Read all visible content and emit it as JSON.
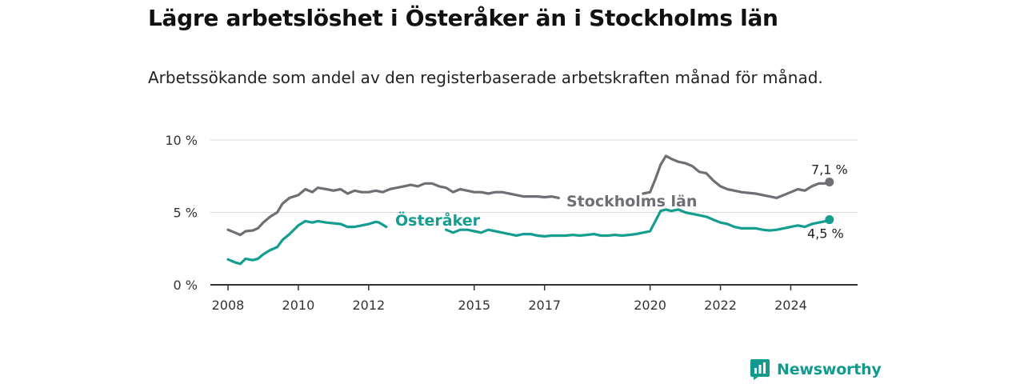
{
  "header": {
    "title": "Lägre arbetslöshet i Österåker än i Stockholms län",
    "subtitle": "Arbetssökande som andel av den registerbaserade arbetskraften månad för månad."
  },
  "brand": {
    "name": "Newsworthy",
    "icon": "bar-chart-speech-bubble-icon"
  },
  "colors": {
    "stockholm": "#6f6e74",
    "osteraker": "#159d8f",
    "grid": "#d9d9d9",
    "axis": "#333333"
  },
  "chart_data": {
    "type": "line",
    "title": "Lägre arbetslöshet i Österåker än i Stockholms län",
    "xlabel": "",
    "ylabel": "",
    "xlim": [
      2007.5,
      2025.9
    ],
    "ylim": [
      0,
      10
    ],
    "y_ticks": [
      0,
      5,
      10
    ],
    "y_tick_labels": [
      "0 %",
      "5 %",
      "10 %"
    ],
    "x_ticks": [
      2008,
      2010,
      2012,
      2015,
      2017,
      2020,
      2022,
      2024
    ],
    "x_tick_labels": [
      "2008",
      "2010",
      "2012",
      "2015",
      "2017",
      "2020",
      "2022",
      "2024"
    ],
    "grid": true,
    "series": [
      {
        "name": "Stockholms län",
        "end_label": "7,1 %",
        "points": [
          [
            2008.0,
            3.8
          ],
          [
            2008.2,
            3.6
          ],
          [
            2008.35,
            3.45
          ],
          [
            2008.5,
            3.7
          ],
          [
            2008.7,
            3.75
          ],
          [
            2008.85,
            3.9
          ],
          [
            2009.0,
            4.3
          ],
          [
            2009.2,
            4.7
          ],
          [
            2009.4,
            5.0
          ],
          [
            2009.55,
            5.6
          ],
          [
            2009.75,
            6.0
          ],
          [
            2010.0,
            6.2
          ],
          [
            2010.2,
            6.6
          ],
          [
            2010.4,
            6.4
          ],
          [
            2010.55,
            6.7
          ],
          [
            2010.8,
            6.6
          ],
          [
            2011.0,
            6.5
          ],
          [
            2011.2,
            6.6
          ],
          [
            2011.4,
            6.3
          ],
          [
            2011.6,
            6.5
          ],
          [
            2011.8,
            6.4
          ],
          [
            2012.0,
            6.4
          ],
          [
            2012.2,
            6.5
          ],
          [
            2012.4,
            6.4
          ],
          [
            2012.6,
            6.6
          ],
          [
            2012.8,
            6.7
          ],
          [
            2013.0,
            6.8
          ],
          [
            2013.2,
            6.9
          ],
          [
            2013.4,
            6.8
          ],
          [
            2013.6,
            7.0
          ],
          [
            2013.8,
            7.0
          ],
          [
            2014.0,
            6.8
          ],
          [
            2014.2,
            6.7
          ],
          [
            2014.4,
            6.4
          ],
          [
            2014.6,
            6.6
          ],
          [
            2014.8,
            6.5
          ],
          [
            2015.0,
            6.4
          ],
          [
            2015.2,
            6.4
          ],
          [
            2015.4,
            6.3
          ],
          [
            2015.6,
            6.4
          ],
          [
            2015.8,
            6.4
          ],
          [
            2016.0,
            6.3
          ],
          [
            2016.2,
            6.2
          ],
          [
            2016.4,
            6.1
          ],
          [
            2016.6,
            6.1
          ],
          [
            2016.8,
            6.1
          ],
          [
            2017.0,
            6.05
          ],
          [
            2017.2,
            6.1
          ],
          [
            2017.4,
            6.0
          ]
        ],
        "points_2": [
          [
            2019.8,
            6.3
          ],
          [
            2020.0,
            6.4
          ],
          [
            2020.15,
            7.3
          ],
          [
            2020.3,
            8.3
          ],
          [
            2020.45,
            8.9
          ],
          [
            2020.6,
            8.7
          ],
          [
            2020.8,
            8.5
          ],
          [
            2021.0,
            8.4
          ],
          [
            2021.2,
            8.2
          ],
          [
            2021.4,
            7.8
          ],
          [
            2021.6,
            7.7
          ],
          [
            2021.8,
            7.2
          ],
          [
            2022.0,
            6.8
          ],
          [
            2022.2,
            6.6
          ],
          [
            2022.4,
            6.5
          ],
          [
            2022.6,
            6.4
          ],
          [
            2022.8,
            6.35
          ],
          [
            2023.0,
            6.3
          ],
          [
            2023.2,
            6.2
          ],
          [
            2023.4,
            6.1
          ],
          [
            2023.6,
            6.0
          ],
          [
            2023.8,
            6.2
          ],
          [
            2024.0,
            6.4
          ],
          [
            2024.2,
            6.6
          ],
          [
            2024.4,
            6.5
          ],
          [
            2024.6,
            6.8
          ],
          [
            2024.8,
            7.0
          ],
          [
            2025.0,
            7.0
          ],
          [
            2025.1,
            7.1
          ]
        ]
      },
      {
        "name": "Österåker",
        "end_label": "4,5 %",
        "points": [
          [
            2008.0,
            1.75
          ],
          [
            2008.2,
            1.55
          ],
          [
            2008.35,
            1.45
          ],
          [
            2008.5,
            1.8
          ],
          [
            2008.7,
            1.7
          ],
          [
            2008.85,
            1.8
          ],
          [
            2009.0,
            2.1
          ],
          [
            2009.2,
            2.4
          ],
          [
            2009.4,
            2.6
          ],
          [
            2009.55,
            3.1
          ],
          [
            2009.75,
            3.5
          ],
          [
            2010.0,
            4.1
          ],
          [
            2010.2,
            4.4
          ],
          [
            2010.4,
            4.3
          ],
          [
            2010.55,
            4.4
          ],
          [
            2010.8,
            4.3
          ],
          [
            2011.0,
            4.25
          ],
          [
            2011.2,
            4.2
          ],
          [
            2011.4,
            4.0
          ],
          [
            2011.6,
            4.0
          ],
          [
            2011.8,
            4.1
          ],
          [
            2012.0,
            4.2
          ],
          [
            2012.2,
            4.35
          ],
          [
            2012.3,
            4.3
          ],
          [
            2012.4,
            4.15
          ],
          [
            2012.5,
            4.0
          ]
        ],
        "points_2": [
          [
            2014.2,
            3.8
          ],
          [
            2014.4,
            3.6
          ],
          [
            2014.6,
            3.8
          ],
          [
            2014.8,
            3.8
          ],
          [
            2015.0,
            3.7
          ],
          [
            2015.2,
            3.6
          ],
          [
            2015.4,
            3.8
          ],
          [
            2015.6,
            3.7
          ],
          [
            2015.8,
            3.6
          ],
          [
            2016.0,
            3.5
          ],
          [
            2016.2,
            3.4
          ],
          [
            2016.4,
            3.5
          ],
          [
            2016.6,
            3.5
          ],
          [
            2016.8,
            3.4
          ],
          [
            2017.0,
            3.35
          ],
          [
            2017.2,
            3.4
          ],
          [
            2017.4,
            3.4
          ],
          [
            2017.6,
            3.4
          ],
          [
            2017.8,
            3.45
          ],
          [
            2018.0,
            3.4
          ],
          [
            2018.2,
            3.45
          ],
          [
            2018.4,
            3.5
          ],
          [
            2018.6,
            3.4
          ],
          [
            2018.8,
            3.4
          ],
          [
            2019.0,
            3.45
          ],
          [
            2019.2,
            3.4
          ],
          [
            2019.4,
            3.45
          ],
          [
            2019.6,
            3.5
          ],
          [
            2019.8,
            3.6
          ],
          [
            2020.0,
            3.7
          ],
          [
            2020.15,
            4.4
          ],
          [
            2020.3,
            5.1
          ],
          [
            2020.45,
            5.2
          ],
          [
            2020.6,
            5.1
          ],
          [
            2020.8,
            5.2
          ],
          [
            2021.0,
            5.0
          ],
          [
            2021.2,
            4.9
          ],
          [
            2021.4,
            4.8
          ],
          [
            2021.6,
            4.7
          ],
          [
            2021.8,
            4.5
          ],
          [
            2022.0,
            4.3
          ],
          [
            2022.2,
            4.2
          ],
          [
            2022.4,
            4.0
          ],
          [
            2022.6,
            3.9
          ],
          [
            2022.8,
            3.9
          ],
          [
            2023.0,
            3.9
          ],
          [
            2023.2,
            3.8
          ],
          [
            2023.4,
            3.75
          ],
          [
            2023.6,
            3.8
          ],
          [
            2023.8,
            3.9
          ],
          [
            2024.0,
            4.0
          ],
          [
            2024.2,
            4.1
          ],
          [
            2024.4,
            4.0
          ],
          [
            2024.6,
            4.2
          ],
          [
            2024.8,
            4.3
          ],
          [
            2025.0,
            4.4
          ],
          [
            2025.1,
            4.5
          ]
        ]
      }
    ]
  }
}
